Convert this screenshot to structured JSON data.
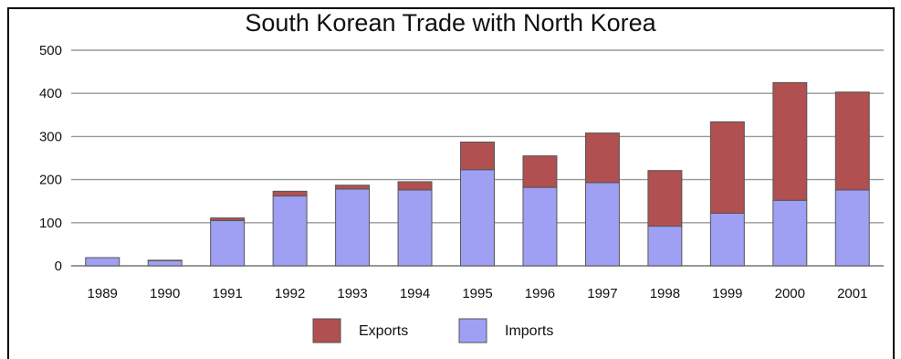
{
  "chart_data": {
    "type": "bar",
    "stacked": true,
    "title": "South Korean Trade with North Korea",
    "xlabel": "",
    "ylabel": "",
    "categories": [
      "1989",
      "1990",
      "1991",
      "1992",
      "1993",
      "1994",
      "1995",
      "1996",
      "1997",
      "1998",
      "1999",
      "2000",
      "2001"
    ],
    "series": [
      {
        "name": "Imports",
        "color": "#9f9ff3",
        "values": [
          19,
          12,
          105,
          162,
          178,
          176,
          223,
          182,
          193,
          92,
          122,
          152,
          176
        ]
      },
      {
        "name": "Exports",
        "color": "#b05050",
        "values": [
          0,
          1,
          6,
          11,
          9,
          19,
          64,
          73,
          115,
          129,
          212,
          273,
          227
        ]
      }
    ],
    "ylim": [
      0,
      500
    ],
    "yticks": [
      0,
      100,
      200,
      300,
      400,
      500
    ],
    "grid": true,
    "legend_position": "bottom-center",
    "legend_order": [
      "Exports",
      "Imports"
    ]
  }
}
